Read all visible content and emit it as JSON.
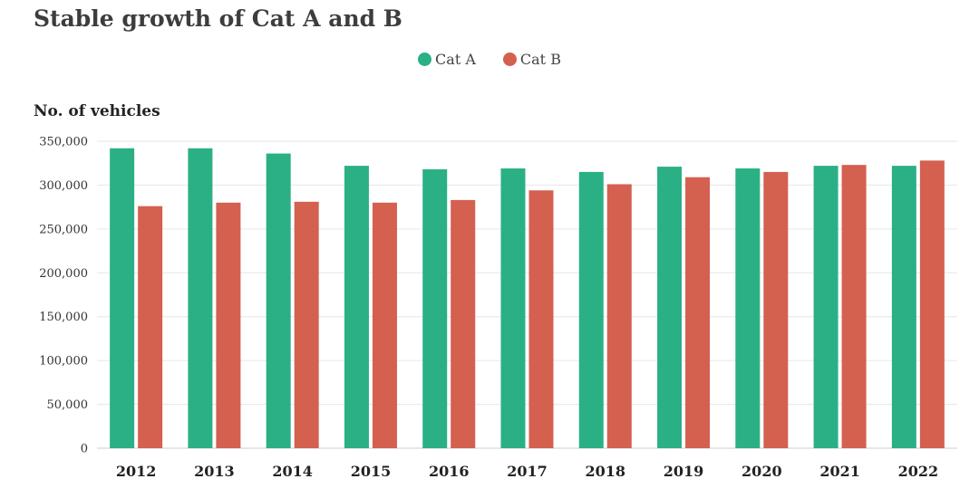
{
  "chart_data": {
    "type": "bar",
    "title": "Stable growth of Cat A and B",
    "ylabel": "No. of vehicles",
    "xlabel": "",
    "categories": [
      "2012",
      "2013",
      "2014",
      "2015",
      "2016",
      "2017",
      "2018",
      "2019",
      "2020",
      "2021",
      "2022"
    ],
    "series": [
      {
        "name": "Cat A",
        "color": "#2bb086",
        "values": [
          342000,
          342000,
          336000,
          322000,
          318000,
          319000,
          315000,
          321000,
          319000,
          322000,
          322000
        ]
      },
      {
        "name": "Cat B",
        "color": "#d4604f",
        "values": [
          276000,
          280000,
          281000,
          280000,
          283000,
          294000,
          301000,
          309000,
          315000,
          323000,
          328000
        ]
      }
    ],
    "ylim": [
      0,
      350000
    ],
    "yticks": [
      "0",
      "50,000",
      "100,000",
      "150,000",
      "200,000",
      "250,000",
      "300,000",
      "350,000"
    ],
    "grid": true,
    "legend_position": "top-center"
  }
}
